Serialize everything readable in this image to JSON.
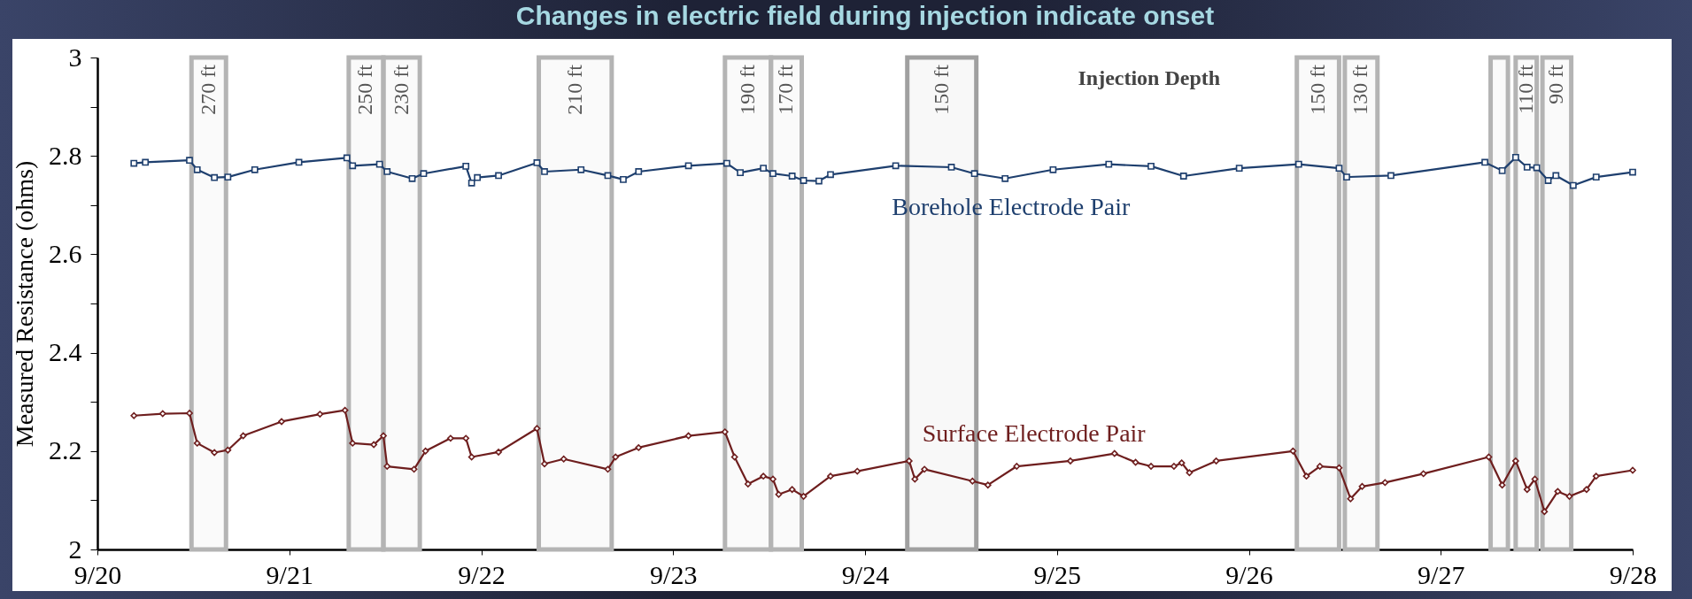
{
  "chart_data": {
    "type": "line",
    "title": "Changes in electric field during injection indicate onset",
    "ylabel": "Measured Resistance (ohms)",
    "annotations": [
      "Injection Depth"
    ],
    "xlim": [
      "--09-20",
      "--09-28"
    ],
    "xticks": [
      {
        "value": "--09-20",
        "label": "9/20"
      },
      {
        "value": "--09-21",
        "label": "9/21"
      },
      {
        "value": "--09-22",
        "label": "9/22"
      },
      {
        "value": "--09-23",
        "label": "9/23"
      },
      {
        "value": "--09-24",
        "label": "9/24"
      },
      {
        "value": "--09-25",
        "label": "9/25"
      },
      {
        "value": "--09-26",
        "label": "9/26"
      },
      {
        "value": "--09-27",
        "label": "9/27"
      },
      {
        "value": "--09-28",
        "label": "9/28"
      }
    ],
    "ylim": [
      2,
      3
    ],
    "yticks": [
      2,
      {
        "value": 2.1,
        "label": null
      },
      2.2,
      {
        "value": 2.3,
        "label": null
      },
      2.4,
      {
        "value": 2.5,
        "label": null
      },
      2.6,
      {
        "value": 2.7,
        "label": null
      },
      2.8,
      {
        "value": 2.9,
        "label": null
      },
      3
    ],
    "grid": false,
    "line_style": "solid",
    "bands": [
      {
        "axis": "x",
        "from": "--09-20T11:46",
        "to": "--09-20T16:05",
        "label": "270 ft",
        "color": "#b4b4b4"
      },
      {
        "axis": "x",
        "from": "--09-21T07:26",
        "to": "--09-21T11:46",
        "label": "250 ft",
        "color": "#b4b4b4"
      },
      {
        "axis": "x",
        "from": "--09-21T11:46",
        "to": "--09-21T16:19",
        "label": "230 ft",
        "color": "#b4b4b4"
      },
      {
        "axis": "x",
        "from": "--09-22T07:12",
        "to": "--09-22T16:19",
        "label": "210 ft",
        "color": "#b4b4b4"
      },
      {
        "axis": "x",
        "from": "--09-23T06:29",
        "to": "--09-23T12:14",
        "label": "190 ft",
        "color": "#b4b4b4"
      },
      {
        "axis": "x",
        "from": "--09-23T12:14",
        "to": "--09-23T16:05",
        "label": "170 ft",
        "color": "#b4b4b4"
      },
      {
        "axis": "x",
        "from": "--09-24T05:17",
        "to": "--09-24T13:55",
        "label": "150 ft",
        "color": "#a0a0a0"
      },
      {
        "axis": "x",
        "from": "--09-26T06:00",
        "to": "--09-26T11:17",
        "label": "150 ft",
        "color": "#b4b4b4"
      },
      {
        "axis": "x",
        "from": "--09-26T12:00",
        "to": "--09-26T16:05",
        "label": "130 ft",
        "color": "#b4b4b4"
      },
      {
        "axis": "x",
        "from": "--09-27T06:14",
        "to": "--09-27T08:24",
        "label": null,
        "color": "#b4b4b4"
      },
      {
        "axis": "x",
        "from": "--09-27T09:22",
        "to": "--09-27T12:00",
        "label": "110 ft",
        "color": "#b4b4b4"
      },
      {
        "axis": "x",
        "from": "--09-27T12:43",
        "to": "--09-27T16:19",
        "label": "90 ft",
        "color": "#b4b4b4"
      }
    ],
    "series": [
      {
        "name": "Borehole Electrode Pair",
        "color": "#1e3f6e",
        "marker": "square",
        "x": [
          "--09-20T04:34",
          "--09-20T06:00",
          "--09-20T11:31",
          "--09-20T12:29",
          "--09-20T14:38",
          "--09-20T16:19",
          "--09-20T19:41",
          "--09-21T01:12",
          "--09-21T07:12",
          "--09-21T07:55",
          "--09-21T11:17",
          "--09-21T12:14",
          "--09-21T15:22",
          "--09-21T16:48",
          "--09-21T22:05",
          "--09-21T22:48",
          "--09-21T23:31",
          "--09-22T02:10",
          "--09-22T06:58",
          "--09-22T07:55",
          "--09-22T12:29",
          "--09-22T15:50",
          "--09-22T17:46",
          "--09-22T19:41",
          "--09-23T01:55",
          "--09-23T06:43",
          "--09-23T08:24",
          "--09-23T11:17",
          "--09-23T12:29",
          "--09-23T14:53",
          "--09-23T16:19",
          "--09-23T18:14",
          "--09-23T19:41",
          "--09-24T03:50",
          "--09-24T10:48",
          "--09-24T13:41",
          "--09-24T17:31",
          "--09-24T23:31",
          "--09-25T06:29",
          "--09-25T11:46",
          "--09-25T15:50",
          "--09-25T22:48",
          "--09-26T06:14",
          "--09-26T11:17",
          "--09-26T12:14",
          "--09-26T17:46",
          "--09-27T05:31",
          "--09-27T07:41",
          "--09-27T09:22",
          "--09-27T10:48",
          "--09-27T12:00",
          "--09-27T13:26",
          "--09-27T14:24",
          "--09-27T16:34",
          "--09-27T19:26",
          "--09-28"
        ],
        "values": [
          2.785,
          2.787,
          2.791,
          2.772,
          2.756,
          2.757,
          2.772,
          2.787,
          2.796,
          2.78,
          2.783,
          2.768,
          2.754,
          2.764,
          2.779,
          2.745,
          2.756,
          2.76,
          2.786,
          2.768,
          2.772,
          2.76,
          2.752,
          2.768,
          2.78,
          2.785,
          2.766,
          2.775,
          2.764,
          2.759,
          2.75,
          2.749,
          2.762,
          2.78,
          2.777,
          2.764,
          2.754,
          2.772,
          2.783,
          2.779,
          2.759,
          2.775,
          2.783,
          2.775,
          2.757,
          2.76,
          2.787,
          2.77,
          2.797,
          2.777,
          2.776,
          2.75,
          2.76,
          2.74,
          2.757,
          2.767
        ]
      },
      {
        "name": "Surface Electrode Pair",
        "color": "#6e1e1e",
        "marker": "diamond",
        "x": [
          "--09-20T04:34",
          "--09-20T08:10",
          "--09-20T11:31",
          "--09-20T12:29",
          "--09-20T14:38",
          "--09-20T16:19",
          "--09-20T18:14",
          "--09-20T23:02",
          "--09-21T03:50",
          "--09-21T06:58",
          "--09-21T07:55",
          "--09-21T10:34",
          "--09-21T11:46",
          "--09-21T12:14",
          "--09-21T15:36",
          "--09-21T17:02",
          "--09-21T20:10",
          "--09-21T22:05",
          "--09-21T22:48",
          "--09-22T02:10",
          "--09-22T06:58",
          "--09-22T07:55",
          "--09-22T10:19",
          "--09-22T15:50",
          "--09-22T16:48",
          "--09-22T19:41",
          "--09-23T01:55",
          "--09-23T06:29",
          "--09-23T07:41",
          "--09-23T09:22",
          "--09-23T11:17",
          "--09-23T12:29",
          "--09-23T13:12",
          "--09-23T14:53",
          "--09-23T16:19",
          "--09-23T19:41",
          "--09-23T23:02",
          "--09-24T05:31",
          "--09-24T06:14",
          "--09-24T07:26",
          "--09-24T13:26",
          "--09-24T15:22",
          "--09-24T18:58",
          "--09-25T01:41",
          "--09-25T07:12",
          "--09-25T09:50",
          "--09-25T11:46",
          "--09-25T14:38",
          "--09-25T15:36",
          "--09-25T16:34",
          "--09-25T19:55",
          "--09-26T05:31",
          "--09-26T07:12",
          "--09-26T08:53",
          "--09-26T11:17",
          "--09-26T12:43",
          "--09-26T14:10",
          "--09-26T17:02",
          "--09-26T21:50",
          "--09-27T06:00",
          "--09-27T07:41",
          "--09-27T09:22",
          "--09-27T10:48",
          "--09-27T11:46",
          "--09-27T12:58",
          "--09-27T14:38",
          "--09-27T16:05",
          "--09-27T18:14",
          "--09-27T19:26",
          "--09-28"
        ],
        "values": [
          2.272,
          2.276,
          2.277,
          2.216,
          2.197,
          2.202,
          2.231,
          2.26,
          2.275,
          2.283,
          2.216,
          2.213,
          2.231,
          2.169,
          2.163,
          2.2,
          2.226,
          2.226,
          2.188,
          2.198,
          2.246,
          2.174,
          2.184,
          2.163,
          2.188,
          2.207,
          2.231,
          2.239,
          2.188,
          2.133,
          2.149,
          2.143,
          2.112,
          2.122,
          2.108,
          2.149,
          2.159,
          2.18,
          2.143,
          2.163,
          2.139,
          2.131,
          2.169,
          2.18,
          2.195,
          2.177,
          2.169,
          2.169,
          2.176,
          2.156,
          2.18,
          2.2,
          2.149,
          2.169,
          2.166,
          2.103,
          2.128,
          2.136,
          2.154,
          2.188,
          2.131,
          2.18,
          2.122,
          2.143,
          2.077,
          2.118,
          2.108,
          2.122,
          2.149,
          2.161
        ]
      }
    ]
  }
}
